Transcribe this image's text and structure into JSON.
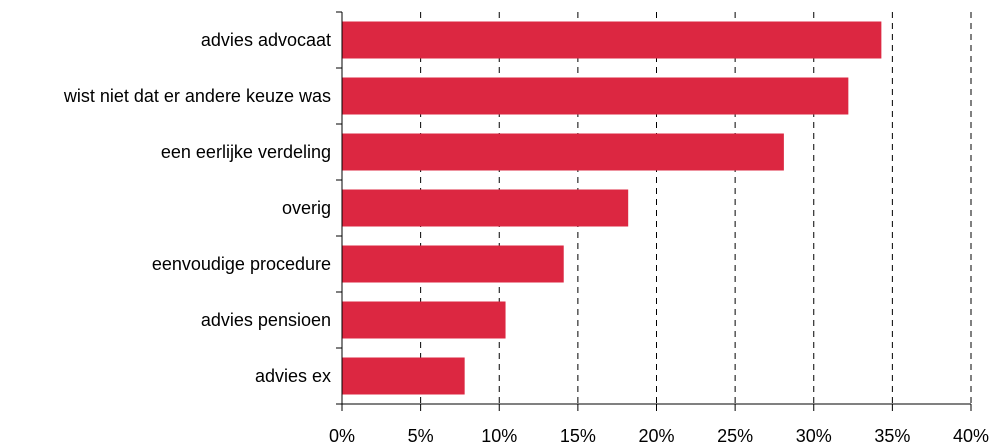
{
  "chart_data": {
    "type": "bar",
    "orientation": "horizontal",
    "title": "",
    "xlabel": "",
    "ylabel": "",
    "categories": [
      "advies advocaat",
      "wist niet dat er andere keuze was",
      "een eerlijke verdeling",
      "overig",
      "eenvoudige procedure",
      "advies pensioen",
      "advies ex"
    ],
    "values": [
      34.3,
      32.2,
      28.1,
      18.2,
      14.1,
      10.4,
      7.8
    ],
    "unit": "%",
    "xlim": [
      0,
      40
    ],
    "x_ticks": [
      0,
      5,
      10,
      15,
      20,
      25,
      30,
      35,
      40
    ],
    "x_tick_labels": [
      "0%",
      "5%",
      "10%",
      "15%",
      "20%",
      "25%",
      "30%",
      "35%",
      "40%"
    ],
    "grid": "vertical dashed",
    "legend": "none",
    "bar_color": "#dc2741"
  }
}
